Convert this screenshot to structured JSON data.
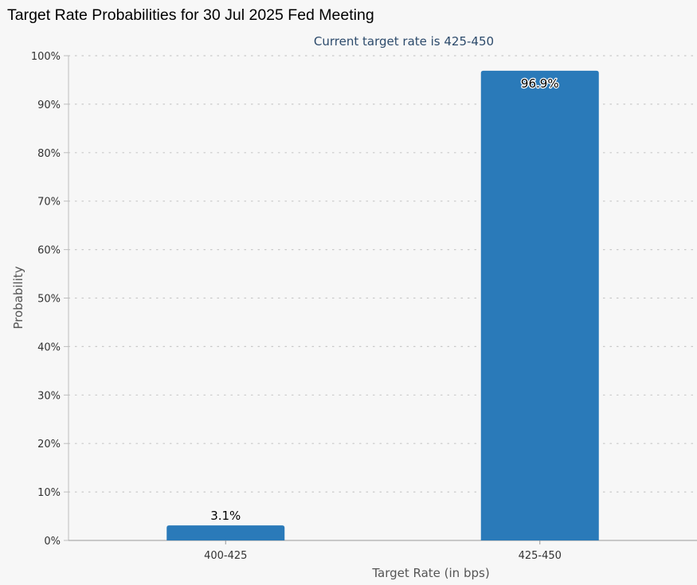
{
  "colors": {
    "bar": "#2a7ab9",
    "background": "#f7f7f7",
    "grid": "#c8c8c8",
    "axis_text": "#333333",
    "subtitle": "#2c4a6b"
  },
  "chart_data": {
    "type": "bar",
    "title": "Target Rate Probabilities for 30 Jul 2025 Fed Meeting",
    "subtitle": "Current target rate is 425-450",
    "xlabel": "Target Rate (in bps)",
    "ylabel": "Probability",
    "categories": [
      "400-425",
      "425-450"
    ],
    "values": [
      3.1,
      96.9
    ],
    "data_labels": [
      "3.1%",
      "96.9%"
    ],
    "ylim": [
      0,
      100
    ],
    "yticks": [
      "0%",
      "10%",
      "20%",
      "30%",
      "40%",
      "50%",
      "60%",
      "70%",
      "80%",
      "90%",
      "100%"
    ],
    "grid": true,
    "legend": false
  }
}
